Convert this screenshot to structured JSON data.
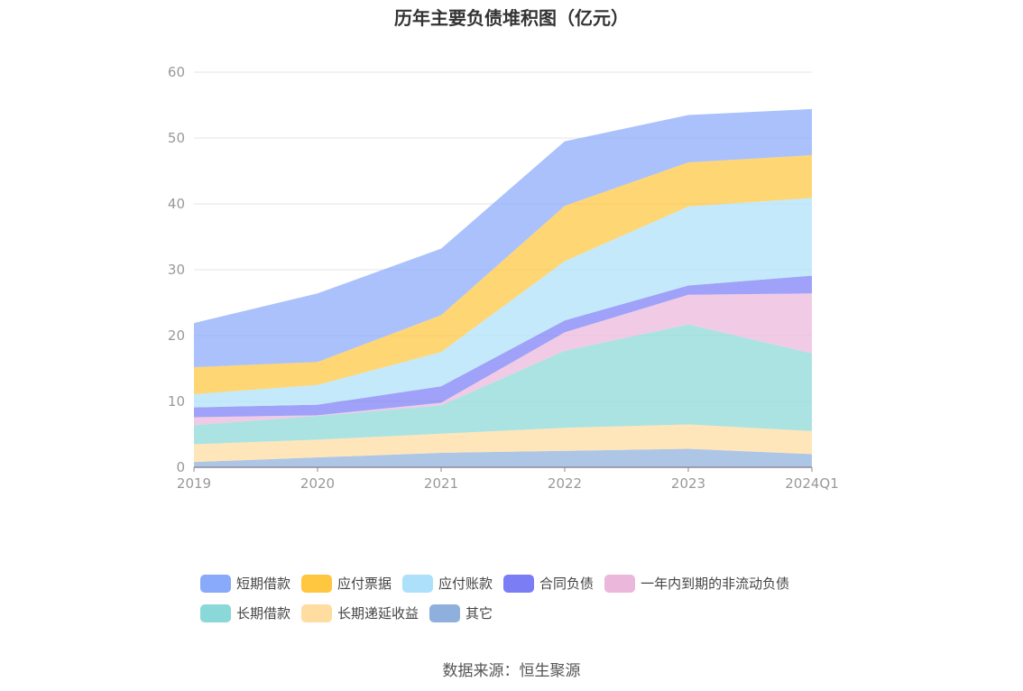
{
  "chart_data": {
    "type": "area",
    "stacked": true,
    "title": "历年主要负债堆积图（亿元）",
    "categories": [
      "2019",
      "2020",
      "2021",
      "2022",
      "2023",
      "2024Q1"
    ],
    "ylim": [
      0,
      60
    ],
    "yticks": [
      0,
      10,
      20,
      30,
      40,
      50,
      60
    ],
    "grid": true,
    "legend_position": "bottom",
    "series": [
      {
        "name": "其它",
        "color": "#8fb0dc",
        "values": [
          0.8,
          1.5,
          2.2,
          2.5,
          2.8,
          2.0
        ]
      },
      {
        "name": "长期递延收益",
        "color": "#ffdca0",
        "values": [
          2.7,
          2.7,
          2.9,
          3.5,
          3.7,
          3.5
        ]
      },
      {
        "name": "长期借款",
        "color": "#8ad8d8",
        "values": [
          2.9,
          3.6,
          4.3,
          11.7,
          15.2,
          11.8
        ]
      },
      {
        "name": "一年内到期的非流动负债",
        "color": "#ebb7db",
        "values": [
          1.2,
          0.1,
          0.4,
          2.8,
          4.5,
          9.1
        ]
      },
      {
        "name": "合同负债",
        "color": "#7b7df5",
        "values": [
          1.5,
          1.6,
          2.5,
          1.8,
          1.4,
          2.7
        ]
      },
      {
        "name": "应付账款",
        "color": "#ade0fa",
        "values": [
          2.0,
          3.0,
          5.2,
          9.0,
          12.0,
          11.8
        ]
      },
      {
        "name": "应付票据",
        "color": "#ffc63f",
        "values": [
          4.1,
          3.5,
          5.6,
          8.4,
          6.7,
          6.5
        ]
      },
      {
        "name": "短期借款",
        "color": "#89a9fb",
        "values": [
          6.7,
          10.4,
          10.1,
          9.8,
          7.2,
          7.0
        ]
      }
    ]
  },
  "legend": {
    "row1": [
      {
        "label": "短期借款",
        "color": "#89a9fb"
      },
      {
        "label": "应付票据",
        "color": "#ffc63f"
      },
      {
        "label": "应付账款",
        "color": "#ade0fa"
      },
      {
        "label": "合同负债",
        "color": "#7b7df5"
      },
      {
        "label": "一年内到期的非流动负债",
        "color": "#ebb7db"
      }
    ],
    "row2": [
      {
        "label": "长期借款",
        "color": "#8ad8d8"
      },
      {
        "label": "长期递延收益",
        "color": "#ffdca0"
      },
      {
        "label": "其它",
        "color": "#8fb0dc"
      }
    ]
  },
  "source": "数据来源：恒生聚源"
}
